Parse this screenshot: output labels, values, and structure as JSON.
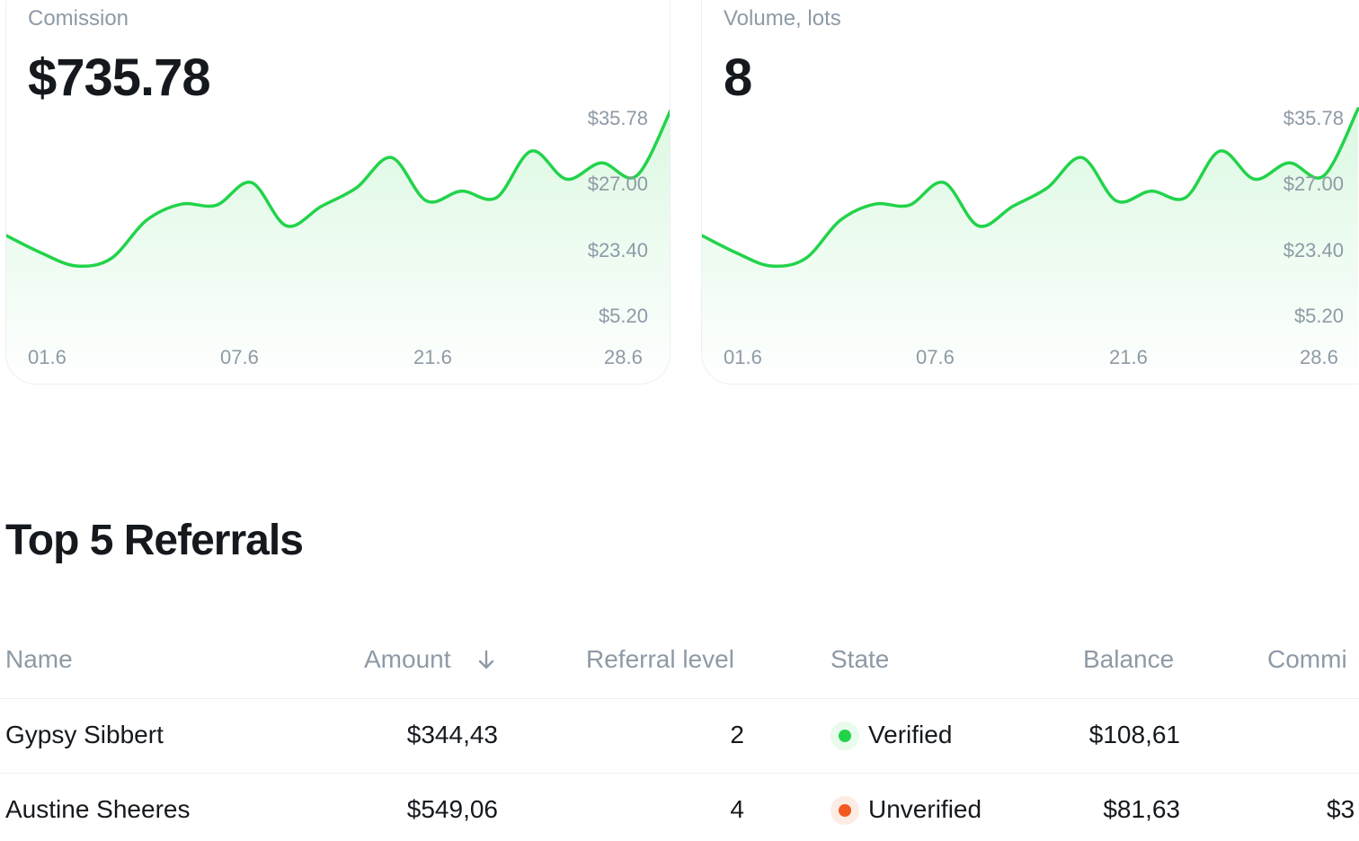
{
  "cards": [
    {
      "label": "Comission",
      "value": "$735.78",
      "y_ticks": [
        "$35.78",
        "$27.00",
        "$23.40",
        "$5.20"
      ],
      "x_ticks": [
        "01.6",
        "07.6",
        "21.6",
        "28.6"
      ]
    },
    {
      "label": "Volume, lots",
      "value": "8",
      "y_ticks": [
        "$35.78",
        "$27.00",
        "$23.40",
        "$5.20"
      ],
      "x_ticks": [
        "01.6",
        "07.6",
        "21.6",
        "28.6"
      ]
    }
  ],
  "chart_data": [
    {
      "type": "area",
      "title": "Comission",
      "y_tick_labels": [
        "$35.78",
        "$27.00",
        "$23.40",
        "$5.20"
      ],
      "x_tick_labels": [
        "01.6",
        "07.6",
        "21.6",
        "28.6"
      ],
      "values": [
        24.1,
        22.5,
        21.3,
        22.0,
        25.5,
        27.0,
        26.9,
        29.0,
        25.0,
        26.8,
        28.5,
        31.3,
        27.3,
        28.2,
        27.6,
        31.9,
        29.3,
        30.8,
        29.6,
        35.8
      ],
      "color": "#22d34a",
      "grid": false
    },
    {
      "type": "area",
      "title": "Volume, lots",
      "y_tick_labels": [
        "$35.78",
        "$27.00",
        "$23.40",
        "$5.20"
      ],
      "x_tick_labels": [
        "01.6",
        "07.6",
        "21.6",
        "28.6"
      ],
      "values": [
        24.1,
        22.5,
        21.3,
        22.0,
        25.5,
        27.0,
        26.9,
        29.0,
        25.0,
        26.8,
        28.5,
        31.3,
        27.3,
        28.2,
        27.6,
        31.9,
        29.3,
        30.8,
        29.6,
        35.8
      ],
      "color": "#22d34a",
      "grid": false
    }
  ],
  "section": {
    "title": "Top 5 Referrals"
  },
  "table": {
    "headers": [
      "Name",
      "Amount",
      "Referral level",
      "State",
      "Balance",
      "Commi"
    ],
    "sort_icon": "arrow-down-icon",
    "rows": [
      {
        "name": "Gypsy Sibbert",
        "amount": "$344,43",
        "level": "2",
        "state": "Verified",
        "state_color": "#22d34a",
        "balance": "$108,61",
        "commission": ""
      },
      {
        "name": "Austine Sheeres",
        "amount": "$549,06",
        "level": "4",
        "state": "Unverified",
        "state_color": "#f05a1e",
        "balance": "$81,63",
        "commission": "$3"
      }
    ]
  },
  "colors": {
    "accent": "#22d34a",
    "muted": "#8e9aa6",
    "text": "#15191e",
    "warning": "#f05a1e"
  }
}
